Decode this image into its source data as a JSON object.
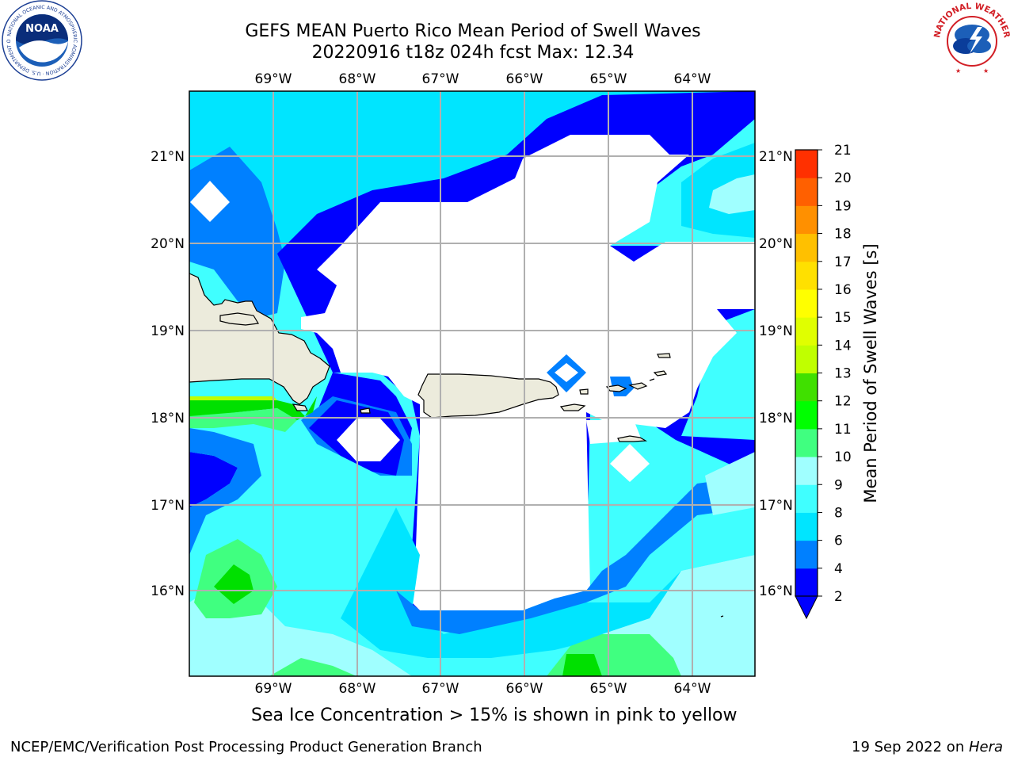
{
  "title": {
    "line1": "GEFS MEAN Puerto Rico Mean Period of Swell Waves",
    "line2": "20220916 t18z 024h fcst   Max: 12.34"
  },
  "logos": {
    "left": "NOAA",
    "left_ring": "NATIONAL OCEANIC AND ATMOSPHERIC ADMINISTRATION · U.S. DEPARTMENT OF COMMERCE",
    "right_ring": "NATIONAL WEATHER SERVICE"
  },
  "map": {
    "lon_ticks": [
      "69°W",
      "68°W",
      "67°W",
      "66°W",
      "65°W",
      "64°W"
    ],
    "lat_ticks": [
      "21°N",
      "20°N",
      "19°N",
      "18°N",
      "17°N",
      "16°N"
    ],
    "land_color": "#ecebdc",
    "grid_color": "#b0b0b0"
  },
  "colorbar": {
    "title": "Mean Period of Swell Waves [s]",
    "ticks": [
      "2",
      "4",
      "6",
      "8",
      "9",
      "10",
      "11",
      "12",
      "13",
      "14",
      "15",
      "16",
      "17",
      "18",
      "19",
      "20",
      "21"
    ],
    "colors": [
      "#0000ff",
      "#0080ff",
      "#00e5ff",
      "#40ffff",
      "#a0ffff",
      "#40ff80",
      "#00ff00",
      "#40e000",
      "#c0ff00",
      "#e0ff00",
      "#ffff00",
      "#ffe000",
      "#ffc000",
      "#ff9000",
      "#ff6000",
      "#ff3000"
    ]
  },
  "legend_colors": {
    "deep_blue": "#0000ff",
    "blue": "#0080ff",
    "cyan": "#00e5ff",
    "light_cyan": "#40ffff",
    "pale_cyan": "#a0ffff",
    "light_green": "#40ff80",
    "green": "#00ff00"
  },
  "footnote": "Sea Ice Concentration > 15% is shown in pink to yellow",
  "footer": {
    "left": "NCEP/EMC/Verification Post Processing Product Generation Branch",
    "right_date": "19 Sep 2022 on ",
    "right_host": "Hera"
  }
}
